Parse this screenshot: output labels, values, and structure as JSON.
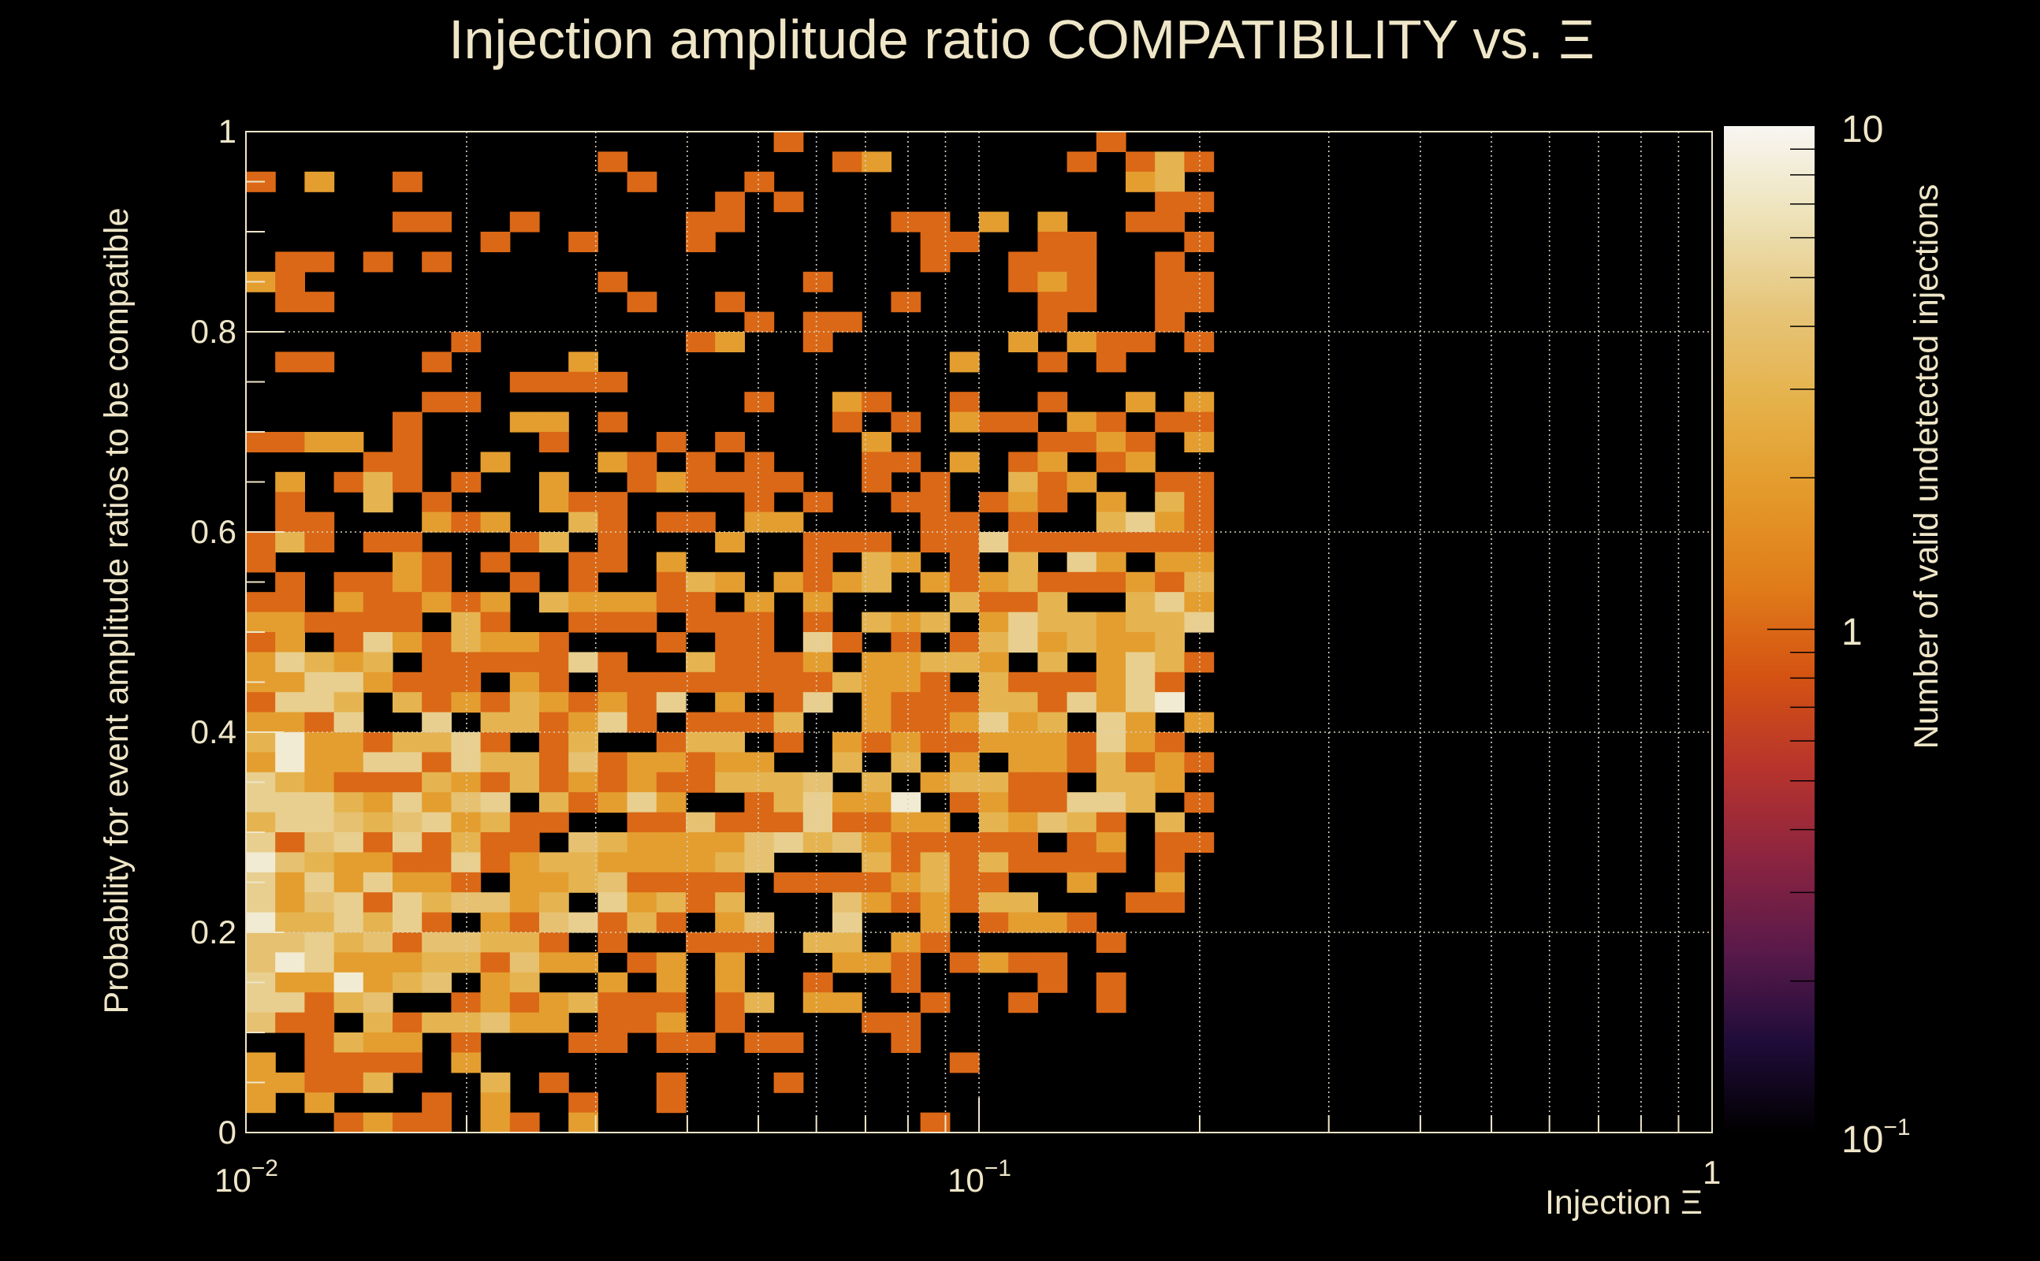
{
  "chart_data": {
    "type": "heatmap",
    "title": "Injection amplitude ratio COMPATIBILITY vs.  Ξ",
    "xlabel": "Injection Ξ",
    "ylabel": "Probability for event amplitude ratios to be compatible",
    "zlabel": "Number of valid undetected injections",
    "x_scale": "log",
    "xlim": [
      0.01,
      1
    ],
    "ylim": [
      0,
      1
    ],
    "zlim": [
      0.1,
      10
    ],
    "z_scale": "log",
    "x_bins": 50,
    "y_bins": 50,
    "grid": true,
    "x_ticks": [
      {
        "value": 0.01,
        "base": "10",
        "exp": "−2"
      },
      {
        "value": 0.1,
        "base": "10",
        "exp": "−1"
      },
      {
        "value": 1,
        "base": "1",
        "exp": ""
      }
    ],
    "y_ticks": [
      {
        "value": 0,
        "label": "0"
      },
      {
        "value": 0.2,
        "label": "0.2"
      },
      {
        "value": 0.4,
        "label": "0.4"
      },
      {
        "value": 0.6,
        "label": "0.6"
      },
      {
        "value": 0.8,
        "label": "0.8"
      },
      {
        "value": 1,
        "label": "1"
      }
    ],
    "z_ticks": [
      {
        "value": 10,
        "base": "10",
        "exp": ""
      },
      {
        "value": 1,
        "base": "1",
        "exp": ""
      },
      {
        "value": 0.1,
        "base": "10",
        "exp": "−1"
      }
    ],
    "colormap": [
      "#000000",
      "#200c3a",
      "#5a1a4a",
      "#8c2440",
      "#b8342c",
      "#d55312",
      "#e07d1a",
      "#e49a2a",
      "#e5b24a",
      "#e6c57a",
      "#ede2b8",
      "#f8f6f2"
    ],
    "counts_rows_top_to_bottom_first_33_x_bins": [
      "000000000000000000100000000001000",
      "000000000000100000001200000010131",
      "102001000000010001000000000000230",
      "000000000000000010100000000000011",
      "000001100100000110000011020200110",
      "000000001001000100000001100110001",
      "011010100000000000000001001110010",
      "210000000000100000010000001210011",
      "011000000000010010000010000110011",
      "000000000000000001011000000100010",
      "000000010000000120010000002021101",
      "011000100002000000000000200101000",
      "000000000111100000000000000000000",
      "000000110000000001002100100100202",
      "000001000220100000001010211021011",
      "112201000010001010000200000112102",
      "000011002000210101000110201201200",
      "020131010020012111100101003120011",
      "010030100021100001010011012102031",
      "011000212003101102200001101003521",
      "131011000130100020011101151111111",
      "100002101001102000010320103052022",
      "010112100101001320212302123111213",
      "110211212032221102020000311300352",
      "221111031001110111010323025332335",
      "120152132210001011051010135232230",
      "253230111115100311120223320302531",
      "225521110210111111113221031112510",
      "155303121321215020150211133152580",
      "221500503312510111300211252305202",
      "382213351013001330102121122215210",
      "282255153314122122003030202213121",
      "532111321312121133340302331103320",
      "555325245031252001352280121155301",
      "355434523110011411151122032431030",
      "514515131104322224534211111012011",
      "843221151233222234000313131111010",
      "525252210223411110111123110020020",
      "524515344230523130004212133000110",
      "833535102145131024005002012210000",
      "445341443310100111033021000001000",
      "485222331422012020002210121100000",
      "522823402300202020010010000101000",
      "551340012123111013022001001001000",
      "411031334220112010000110000000000",
      "001322010001101101100010000000000",
      "201111020000000000000000100000000",
      "221130003010001000100000000000000",
      "202000102001001000000000000000000",
      "000121102102000000000001000000000"
    ]
  }
}
